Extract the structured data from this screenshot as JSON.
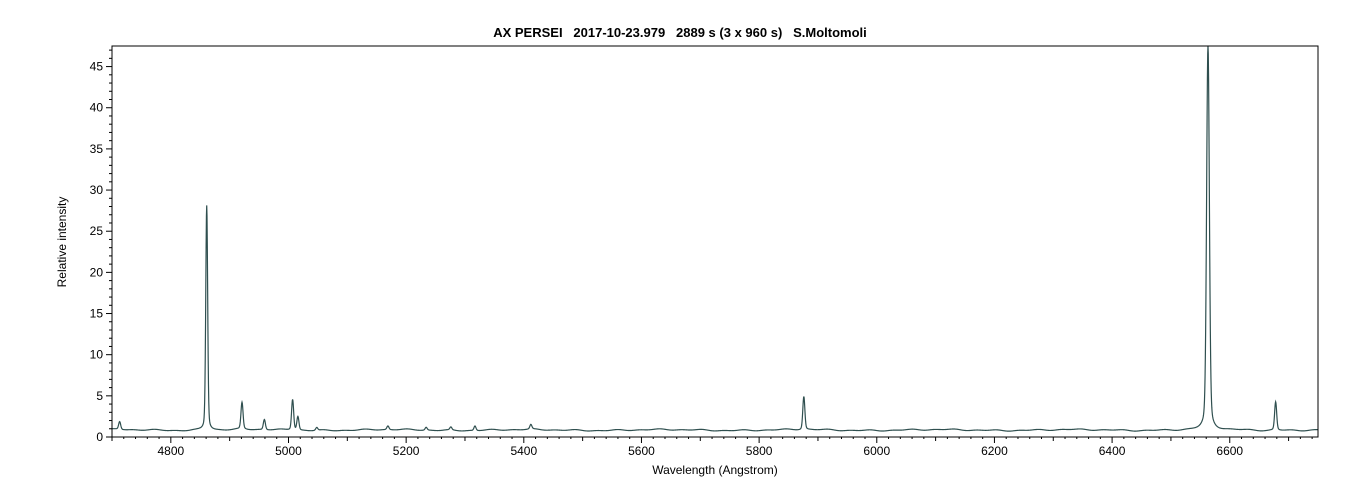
{
  "chart_data": {
    "type": "line",
    "title": "AX PERSEI   2017-10-23.979   2889 s (3 x 960 s)   S.Moltomoli",
    "xlabel": "Wavelength (Angstrom)",
    "ylabel": "Relative intensity",
    "xlim": [
      4700,
      6750
    ],
    "ylim": [
      0,
      47.5
    ],
    "x_ticks": [
      4800,
      5000,
      5200,
      5400,
      5600,
      5800,
      6000,
      6200,
      6400,
      6600
    ],
    "y_ticks": [
      0,
      5,
      10,
      15,
      20,
      25,
      30,
      35,
      40,
      45
    ],
    "grid": false,
    "line_color": "#2f4f4f",
    "baseline": 0.85,
    "emission_lines": [
      {
        "x": 4713,
        "peak": 1.8
      },
      {
        "x": 4861,
        "peak": 28.2
      },
      {
        "x": 4921,
        "peak": 4.1
      },
      {
        "x": 4959,
        "peak": 2.1
      },
      {
        "x": 5007,
        "peak": 4.6
      },
      {
        "x": 5016,
        "peak": 2.5
      },
      {
        "x": 5048,
        "peak": 1.2
      },
      {
        "x": 5169,
        "peak": 1.3
      },
      {
        "x": 5234,
        "peak": 1.2
      },
      {
        "x": 5276,
        "peak": 1.2
      },
      {
        "x": 5317,
        "peak": 1.4
      },
      {
        "x": 5412,
        "peak": 1.4
      },
      {
        "x": 5876,
        "peak": 4.9
      },
      {
        "x": 6563,
        "peak": 47.5
      },
      {
        "x": 6678,
        "peak": 4.3
      }
    ]
  }
}
